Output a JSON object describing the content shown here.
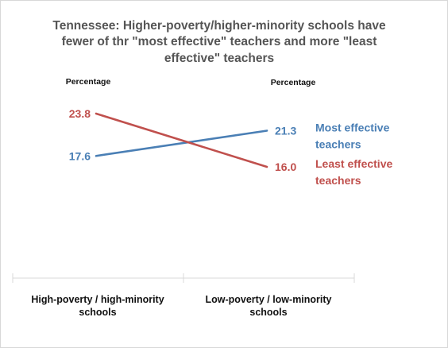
{
  "chart_data": {
    "type": "line",
    "title": [
      "Tennessee: Higher-poverty/higher-minority schools have",
      "fewer of thr \"most effective\" teachers and more \"least",
      "effective\" teachers"
    ],
    "ylabel_left": "Percentage",
    "ylabel_right": "Percentage",
    "categories": [
      [
        "High-poverty / high-minority",
        "schools"
      ],
      [
        "Low-poverty / low-minority",
        "schools"
      ]
    ],
    "series": [
      {
        "name": [
          "Most effective",
          "teachers"
        ],
        "values": [
          17.6,
          21.3
        ],
        "labels": [
          "17.6",
          "21.3"
        ],
        "color": "#4a7fb5"
      },
      {
        "name": [
          "Least effective",
          "teachers"
        ],
        "values": [
          23.8,
          16.0
        ],
        "labels": [
          "23.8",
          "16.0"
        ],
        "color": "#c0504d"
      }
    ]
  }
}
